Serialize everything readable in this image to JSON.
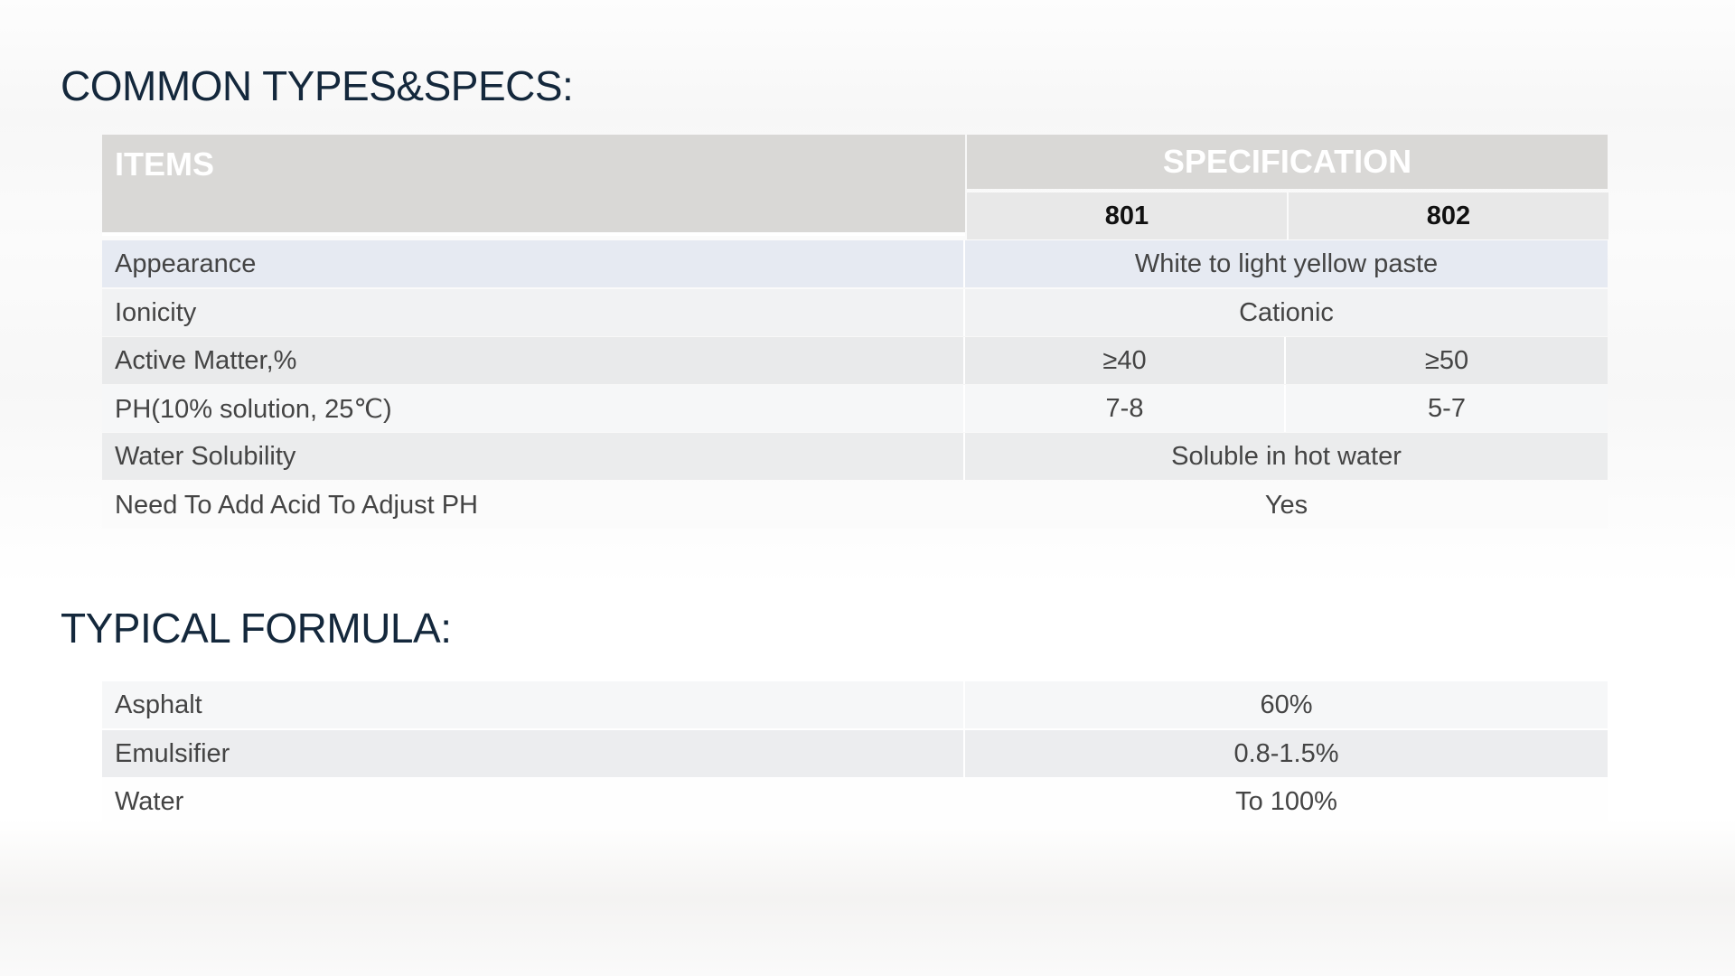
{
  "specs": {
    "title": "COMMON TYPES&SPECS:",
    "header": {
      "items": "ITEMS",
      "specification": "SPECIFICATION",
      "types": [
        "801",
        "802"
      ]
    },
    "rows": [
      {
        "label": "Appearance",
        "value": "White to light yellow paste"
      },
      {
        "label": "Ionicity",
        "value": "Cationic"
      },
      {
        "label": "Active Matter,%",
        "v801": "≥40",
        "v802": "≥50"
      },
      {
        "label": "PH(10% solution, 25℃)",
        "v801": "7-8",
        "v802": "5-7"
      },
      {
        "label": "Water Solubility",
        "value": "Soluble in hot water"
      },
      {
        "label": "Need To Add Acid To Adjust PH",
        "value": "Yes"
      }
    ]
  },
  "formula": {
    "title": "TYPICAL FORMULA:",
    "rows": [
      {
        "label": "Asphalt",
        "value": "60%"
      },
      {
        "label": "Emulsifier",
        "value": "0.8-1.5%"
      },
      {
        "label": "Water",
        "value": "To 100%"
      }
    ]
  }
}
